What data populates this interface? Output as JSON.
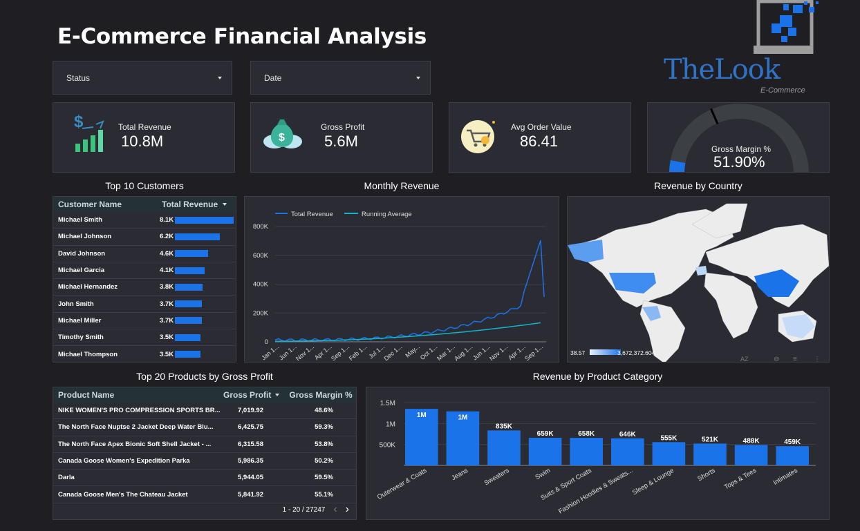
{
  "title": "E-Commerce Financial Analysis",
  "logo": {
    "brand": "TheLook",
    "tagline": "E-Commerce"
  },
  "filters": {
    "status": "Status",
    "date": "Date"
  },
  "kpis": {
    "total_revenue": {
      "label": "Total Revenue",
      "value": "10.8M"
    },
    "gross_profit": {
      "label": "Gross Profit",
      "value": "5.6M"
    },
    "avg_order": {
      "label": "Avg Order Value",
      "value": "86.41"
    },
    "gross_margin": {
      "label": "Gross Margin %",
      "value": "51.90%",
      "fraction": 0.519
    }
  },
  "customers": {
    "title": "Top 10 Customers",
    "col_name": "Customer Name",
    "col_revenue": "Total Revenue",
    "max": 8.1,
    "rows": [
      {
        "name": "Michael Smith",
        "value": "8.1K",
        "v": 8.1
      },
      {
        "name": "Michael Johnson",
        "value": "6.2K",
        "v": 6.2
      },
      {
        "name": "David Johnson",
        "value": "4.6K",
        "v": 4.6
      },
      {
        "name": "Michael Garcia",
        "value": "4.1K",
        "v": 4.1
      },
      {
        "name": "Michael Hernandez",
        "value": "3.8K",
        "v": 3.8
      },
      {
        "name": "John Smith",
        "value": "3.7K",
        "v": 3.7
      },
      {
        "name": "Michael Miller",
        "value": "3.7K",
        "v": 3.7
      },
      {
        "name": "Timothy Smith",
        "value": "3.5K",
        "v": 3.5
      },
      {
        "name": "Michael Thompson",
        "value": "3.5K",
        "v": 3.5
      }
    ]
  },
  "monthly": {
    "title": "Monthly Revenue",
    "legend": [
      "Total Revenue",
      "Running Average"
    ],
    "y_ticks": [
      "800K",
      "600K",
      "400K",
      "200K",
      "0"
    ],
    "x_ticks": [
      "Jan 1...",
      "Jun 1...",
      "Nov 1...",
      "Apr 1...",
      "Sep 1...",
      "Feb 1...",
      "Jul 1...",
      "Dec 1...",
      "May...",
      "Oct 1...",
      "Mar 1...",
      "Aug 1...",
      "Jun 1...",
      "Nov 1...",
      "Apr 1...",
      "Sep 1..."
    ]
  },
  "country": {
    "title": "Revenue by Country",
    "legend_min": "38.57",
    "legend_max": "3,672,372.604"
  },
  "products": {
    "title": "Top 20 Products by Gross Profit",
    "col_name": "Product Name",
    "col_profit": "Gross Profit",
    "col_margin": "Gross Margin %",
    "rows": [
      {
        "name": "NIKE WOMEN'S PRO COMPRESSION SPORTS BR...",
        "profit": "7,019.92",
        "margin": "48.6%"
      },
      {
        "name": "The North Face Nuptse 2 Jacket Deep Water Blu...",
        "profit": "6,425.75",
        "margin": "59.3%"
      },
      {
        "name": "The North Face Apex Bionic Soft Shell Jacket - ...",
        "profit": "6,315.58",
        "margin": "53.8%"
      },
      {
        "name": "Canada Goose Women's Expedition Parka",
        "profit": "5,986.35",
        "margin": "50.2%"
      },
      {
        "name": "Darla",
        "profit": "5,944.05",
        "margin": "59.5%"
      },
      {
        "name": "Canada Goose Men's The Chateau Jacket",
        "profit": "5,841.92",
        "margin": "55.1%"
      }
    ],
    "pagination": "1 - 20 / 27247"
  },
  "chart_data": {
    "type": "bar",
    "title": "Revenue by Product Category",
    "categories": [
      "Outerwear & Coats",
      "Jeans",
      "Sweaters",
      "Swim",
      "Suits & Sport Coats",
      "Fashion Hoodies & Sweats...",
      "Sleep & Lounge",
      "Shorts",
      "Tops & Tees",
      "Intimates"
    ],
    "values": [
      1350000,
      1290000,
      835000,
      659000,
      658000,
      646000,
      555000,
      521000,
      488000,
      459000
    ],
    "data_labels": [
      "1M",
      "1M",
      "835K",
      "659K",
      "658K",
      "646K",
      "555K",
      "521K",
      "488K",
      "459K"
    ],
    "y_ticks": [
      "1.5M",
      "1M",
      "500K",
      "0"
    ],
    "ylim": [
      0,
      1500000
    ],
    "grid": true
  },
  "colors": {
    "accent": "#1a73e8",
    "teal": "#12b5cb",
    "bg": "#1f1f23",
    "panel": "#2b2c33"
  }
}
